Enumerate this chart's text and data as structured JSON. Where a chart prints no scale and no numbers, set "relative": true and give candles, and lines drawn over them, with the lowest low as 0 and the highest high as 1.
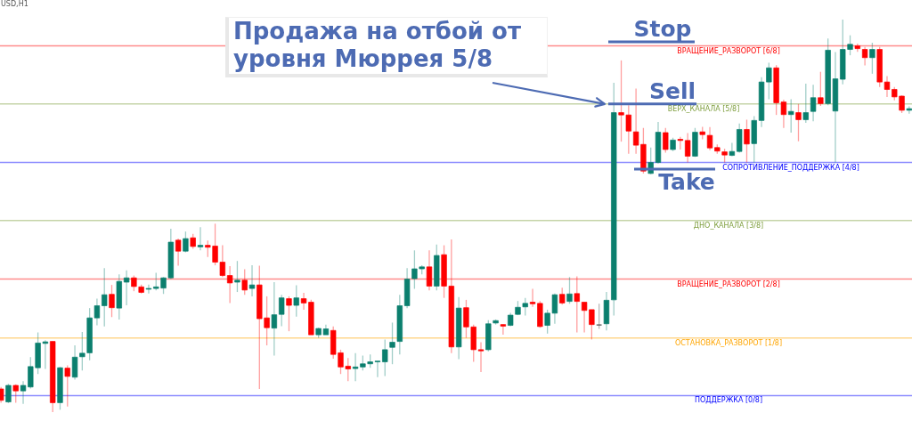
{
  "chart_data": {
    "type": "candlestick",
    "relative": true,
    "categories": [
      null,
      null,
      null,
      null,
      null,
      null,
      null,
      null,
      null,
      null,
      null,
      null,
      null,
      null,
      null,
      null,
      null,
      null,
      null,
      null,
      null,
      null,
      null,
      null,
      null,
      null,
      null,
      null,
      null,
      null,
      null,
      null,
      null,
      null,
      null,
      null,
      null,
      null,
      null,
      null,
      null,
      null,
      null,
      null,
      null,
      null,
      null,
      null,
      null,
      null,
      null,
      null,
      null,
      null,
      null,
      null,
      null,
      null,
      null,
      null,
      null,
      null,
      null,
      null,
      null,
      null,
      null,
      null,
      null,
      null,
      null,
      null,
      null,
      null,
      null,
      null,
      null,
      null,
      null,
      null,
      null,
      null,
      null,
      null,
      null,
      null,
      null,
      null,
      null,
      null,
      null,
      null,
      null,
      null,
      null,
      null,
      null,
      null,
      null,
      null,
      null,
      null,
      null,
      null,
      null,
      null,
      null,
      null,
      null,
      null,
      null,
      null,
      null,
      null,
      null,
      null,
      null,
      null,
      null,
      null,
      null,
      null,
      null,
      null
    ],
    "ohlc": [
      [
        0.059,
        0.064,
        0.024,
        0.03
      ],
      [
        0.026,
        0.072,
        0.023,
        0.068
      ],
      [
        0.068,
        0.071,
        0.024,
        0.054
      ],
      [
        0.054,
        0.079,
        0.021,
        0.068
      ],
      [
        0.064,
        0.14,
        0.06,
        0.116
      ],
      [
        0.113,
        0.203,
        0.097,
        0.176
      ],
      [
        0.175,
        0.183,
        0.11,
        0.179
      ],
      [
        0.18,
        0.181,
        0,
        0.024
      ],
      [
        0.024,
        0.115,
        0.006,
        0.113
      ],
      [
        0.112,
        0.119,
        0.014,
        0.091
      ],
      [
        0.089,
        0.17,
        0.083,
        0.14
      ],
      [
        0.141,
        0.204,
        0.106,
        0.15
      ],
      [
        0.151,
        0.265,
        0.132,
        0.24
      ],
      [
        0.24,
        0.289,
        0.221,
        0.271
      ],
      [
        0.271,
        0.367,
        0.218,
        0.299
      ],
      [
        0.3,
        0.324,
        0.242,
        0.266
      ],
      [
        0.265,
        0.351,
        0.236,
        0.333
      ],
      [
        0.331,
        0.361,
        0.272,
        0.342
      ],
      [
        0.342,
        0.348,
        0.308,
        0.32
      ],
      [
        0.319,
        0.325,
        0.302,
        0.305
      ],
      [
        0.313,
        0.325,
        0.302,
        0.315
      ],
      [
        0.315,
        0.355,
        0.31,
        0.319
      ],
      [
        0.316,
        0.344,
        0.301,
        0.342
      ],
      [
        0.342,
        0.467,
        0.339,
        0.433
      ],
      [
        0.438,
        0.442,
        0.373,
        0.41
      ],
      [
        0.41,
        0.46,
        0.407,
        0.442
      ],
      [
        0.444,
        0.454,
        0.416,
        0.422
      ],
      [
        0.421,
        0.471,
        0.412,
        0.425
      ],
      [
        0.425,
        0.437,
        0.395,
        0.42
      ],
      [
        0.423,
        0.48,
        0.374,
        0.382
      ],
      [
        0.382,
        0.425,
        0.344,
        0.348
      ],
      [
        0.348,
        0.372,
        0.278,
        0.329
      ],
      [
        0.331,
        0.385,
        0.306,
        0.336
      ],
      [
        0.336,
        0.364,
        0.299,
        0.311
      ],
      [
        0.315,
        0.374,
        0.295,
        0.324
      ],
      [
        0.324,
        0.373,
        0.059,
        0.238
      ],
      [
        0.24,
        0.295,
        0.17,
        0.215
      ],
      [
        0.214,
        0.331,
        0.144,
        0.248
      ],
      [
        0.249,
        0.299,
        0.219,
        0.291
      ],
      [
        0.289,
        0.295,
        0.206,
        0.272
      ],
      [
        0.272,
        0.323,
        0.243,
        0.291
      ],
      [
        0.289,
        0.304,
        0.261,
        0.278
      ],
      [
        0.28,
        0.286,
        0.197,
        0.197
      ],
      [
        0.197,
        0.215,
        0.189,
        0.213
      ],
      [
        0.197,
        0.223,
        0.197,
        0.212
      ],
      [
        0.208,
        0.218,
        0.136,
        0.147
      ],
      [
        0.151,
        0.159,
        0.097,
        0.115
      ],
      [
        0.117,
        0.138,
        0.079,
        0.11
      ],
      [
        0.111,
        0.15,
        0.079,
        0.115
      ],
      [
        0.115,
        0.144,
        0.106,
        0.123
      ],
      [
        0.123,
        0.147,
        0.113,
        0.128
      ],
      [
        0.128,
        0.13,
        0.089,
        0.13
      ],
      [
        0.128,
        0.185,
        0.092,
        0.159
      ],
      [
        0.165,
        0.228,
        0.122,
        0.178
      ],
      [
        0.18,
        0.299,
        0.147,
        0.271
      ],
      [
        0.271,
        0.367,
        0.265,
        0.339
      ],
      [
        0.34,
        0.412,
        0.314,
        0.365
      ],
      [
        0.365,
        0.374,
        0.351,
        0.37
      ],
      [
        0.37,
        0.412,
        0.31,
        0.321
      ],
      [
        0.321,
        0.427,
        0.31,
        0.399
      ],
      [
        0.401,
        0.425,
        0.291,
        0.321
      ],
      [
        0.321,
        0.44,
        0.15,
        0.166
      ],
      [
        0.166,
        0.293,
        0.135,
        0.265
      ],
      [
        0.266,
        0.286,
        0.189,
        0.217
      ],
      [
        0.217,
        0.223,
        0.128,
        0.159
      ],
      [
        0.159,
        0.178,
        0.102,
        0.156
      ],
      [
        0.159,
        0.234,
        0.155,
        0.225
      ],
      [
        0.227,
        0.236,
        0.223,
        0.233
      ],
      [
        0.223,
        0.224,
        0.197,
        0.219
      ],
      [
        0.221,
        0.253,
        0.219,
        0.247
      ],
      [
        0.249,
        0.283,
        0.247,
        0.267
      ],
      [
        0.268,
        0.291,
        0.246,
        0.277
      ],
      [
        0.28,
        0.314,
        0.268,
        0.276
      ],
      [
        0.277,
        0.283,
        0.215,
        0.218
      ],
      [
        0.221,
        0.261,
        0.2,
        0.252
      ],
      [
        0.252,
        0.302,
        0.225,
        0.299
      ],
      [
        0.3,
        0.317,
        0.274,
        0.278
      ],
      [
        0.282,
        0.344,
        0.276,
        0.301
      ],
      [
        0.302,
        0.346,
        0.203,
        0.282
      ],
      [
        0.28,
        0.28,
        0.203,
        0.259
      ],
      [
        0.261,
        0.261,
        0.185,
        0.223
      ],
      [
        0.222,
        0.276,
        0.212,
        0.222
      ],
      [
        0.225,
        0.306,
        0.208,
        0.285
      ],
      [
        0.286,
        0.839,
        0.246,
        0.763
      ],
      [
        0.763,
        0.896,
        0.689,
        0.757
      ],
      [
        0.757,
        0.782,
        0.658,
        0.716
      ],
      [
        0.714,
        0.824,
        0.658,
        0.68
      ],
      [
        0.682,
        0.724,
        0.608,
        0.614
      ],
      [
        0.608,
        0.674,
        0.606,
        0.636
      ],
      [
        0.636,
        0.739,
        0.633,
        0.713
      ],
      [
        0.712,
        0.724,
        0.661,
        0.669
      ],
      [
        0.669,
        0.699,
        0.665,
        0.693
      ],
      [
        0.695,
        0.701,
        0.669,
        0.692
      ],
      [
        0.692,
        0.711,
        0.636,
        0.652
      ],
      [
        0.652,
        0.724,
        0.65,
        0.713
      ],
      [
        0.714,
        0.727,
        0.695,
        0.707
      ],
      [
        0.705,
        0.726,
        0.667,
        0.673
      ],
      [
        0.674,
        0.682,
        0.658,
        0.665
      ],
      [
        0.663,
        0.671,
        0.636,
        0.655
      ],
      [
        0.654,
        0.686,
        0.652,
        0.664
      ],
      [
        0.664,
        0.735,
        0.661,
        0.72
      ],
      [
        0.72,
        0.745,
        0.636,
        0.683
      ],
      [
        0.684,
        0.754,
        0.636,
        0.743
      ],
      [
        0.743,
        0.853,
        0.726,
        0.841
      ],
      [
        0.841,
        0.89,
        0.797,
        0.877
      ],
      [
        0.877,
        0.884,
        0.757,
        0.788
      ],
      [
        0.79,
        0.796,
        0.724,
        0.758
      ],
      [
        0.758,
        0.797,
        0.712,
        0.766
      ],
      [
        0.763,
        0.785,
        0.69,
        0.745
      ],
      [
        0.745,
        0.837,
        0.737,
        0.763
      ],
      [
        0.766,
        0.834,
        0.741,
        0.801
      ],
      [
        0.801,
        0.867,
        0.78,
        0.786
      ],
      [
        0.786,
        0.952,
        0.782,
        0.922
      ],
      [
        0.767,
        0.917,
        0.636,
        0.849
      ],
      [
        0.848,
        1,
        0.835,
        0.924
      ],
      [
        0.924,
        0.96,
        0.909,
        0.937
      ],
      [
        0.933,
        0.939,
        0.918,
        0.926
      ],
      [
        0.924,
        0.93,
        0.883,
        0.903
      ],
      [
        0.903,
        0.941,
        0.862,
        0.924
      ],
      [
        0.924,
        0.93,
        0.828,
        0.841
      ],
      [
        0.841,
        0.856,
        0.803,
        0.822
      ],
      [
        0.822,
        0.828,
        0.794,
        0.803
      ],
      [
        0.805,
        0.807,
        0.762,
        0.769
      ],
      [
        0.769,
        0.779,
        0.76,
        0.773
      ]
    ],
    "colors": [
      "#ff0000",
      "#0b7f6e",
      "#ff0000",
      "#0b7f6e",
      "#0b7f6e",
      "#0b7f6e",
      "#0b7f6e",
      "#ff0000",
      "#0b7f6e",
      "#ff0000",
      "#0b7f6e",
      "#0b7f6e",
      "#0b7f6e",
      "#0b7f6e",
      "#0b7f6e",
      "#ff0000",
      "#0b7f6e",
      "#0b7f6e",
      "#ff0000",
      "#ff0000",
      "#0b7f6e",
      "#0b7f6e",
      "#0b7f6e",
      "#0b7f6e",
      "#ff0000",
      "#0b7f6e",
      "#ff0000",
      "#0b7f6e",
      "#ff0000",
      "#ff0000",
      "#ff0000",
      "#ff0000",
      "#0b7f6e",
      "#ff0000",
      "#0b7f6e",
      "#ff0000",
      "#ff0000",
      "#0b7f6e",
      "#0b7f6e",
      "#ff0000",
      "#0b7f6e",
      "#ff0000",
      "#ff0000",
      "#0b7f6e",
      "#0b7f6e",
      "#ff0000",
      "#ff0000",
      "#ff0000",
      "#0b7f6e",
      "#0b7f6e",
      "#0b7f6e",
      "#0b7f6e",
      "#0b7f6e",
      "#0b7f6e",
      "#0b7f6e",
      "#0b7f6e",
      "#0b7f6e",
      "#0b7f6e",
      "#ff0000",
      "#0b7f6e",
      "#ff0000",
      "#ff0000",
      "#0b7f6e",
      "#ff0000",
      "#ff0000",
      "#ff0000",
      "#0b7f6e",
      "#0b7f6e",
      "#ff0000",
      "#0b7f6e",
      "#0b7f6e",
      "#0b7f6e",
      "#ff0000",
      "#ff0000",
      "#0b7f6e",
      "#0b7f6e",
      "#ff0000",
      "#0b7f6e",
      "#ff0000",
      "#ff0000",
      "#ff0000",
      "#454545",
      "#0b7f6e",
      "#0b7f6e",
      "#ff0000",
      "#ff0000",
      "#ff0000",
      "#ff0000",
      "#0b7f6e",
      "#0b7f6e",
      "#ff0000",
      "#0b7f6e",
      "#ff0000",
      "#ff0000",
      "#0b7f6e",
      "#ff0000",
      "#ff0000",
      "#ff0000",
      "#ff0000",
      "#0b7f6e",
      "#0b7f6e",
      "#ff0000",
      "#0b7f6e",
      "#0b7f6e",
      "#0b7f6e",
      "#ff0000",
      "#ff0000",
      "#0b7f6e",
      "#ff0000",
      "#0b7f6e",
      "#0b7f6e",
      "#ff0000",
      "#0b7f6e",
      "#0b7f6e",
      "#0b7f6e",
      "#0b7f6e",
      "#ff0000",
      "#ff0000",
      "#0b7f6e",
      "#ff0000",
      "#ff0000",
      "#ff0000",
      "#ff0000",
      "#0b7f6e"
    ],
    "ref_lines": [
      {
        "axis": "y",
        "value": 0.933,
        "label": "ВРАЩЕНИЕ_РАЗВОРОТ [6/8]",
        "color": "#ff0000"
      },
      {
        "axis": "y",
        "value": 0.785,
        "label": "ВЕРХ_КАНАЛА [5/8]",
        "color": "#7f9f3f"
      },
      {
        "axis": "y",
        "value": 0.636,
        "label": "СОПРОТИВЛЕНИЕ_ПОДДЕРЖКА [4/8]",
        "color": "#0000ff"
      },
      {
        "axis": "y",
        "value": 0.488,
        "label": "ДНО_КАНАЛА [3/8]",
        "color": "#7f9f3f"
      },
      {
        "axis": "y",
        "value": 0.339,
        "label": "ВРАЩЕНИЕ_РАЗВОРОТ [2/8]",
        "color": "#ff0000"
      },
      {
        "axis": "y",
        "value": 0.189,
        "label": "ОСТАНОВКА_РАЗВОРОТ [1/8]",
        "color": "#ffa500"
      },
      {
        "axis": "y",
        "value": 0.042,
        "label": "ПОДДЕРЖКА [0/8]",
        "color": "#0000ff"
      }
    ],
    "annotations": [
      "USD,H1",
      {
        "text": "Продажа на отбой от уровня Мюррея 5/8",
        "y": 0.785
      },
      "Stop",
      {
        "text": "Sell",
        "y": 0.785
      },
      "Take"
    ]
  }
}
